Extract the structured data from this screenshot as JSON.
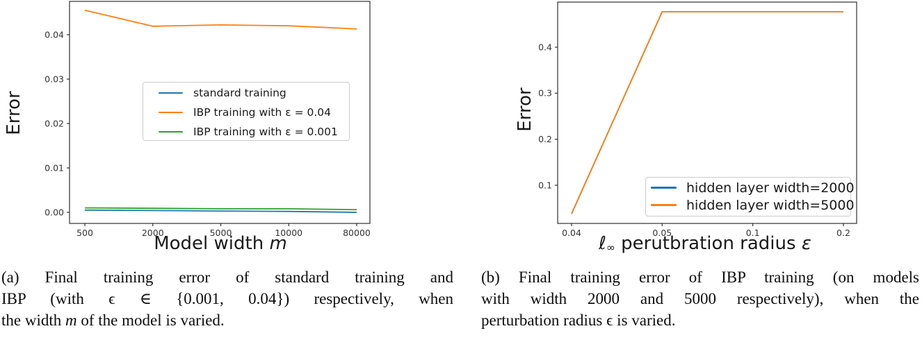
{
  "chart_data": [
    {
      "type": "line",
      "title": "",
      "ylabel": "Error",
      "xlabel_segments": [
        {
          "t": "Model width "
        },
        {
          "t": "m",
          "i": true
        }
      ],
      "x_tick_labels": [
        "500",
        "2000",
        "5000",
        "10000",
        "80000"
      ],
      "y_ticks": [
        0.0,
        0.01,
        0.02,
        0.03,
        0.04
      ],
      "y_tick_labels": [
        "0.00",
        "0.01",
        "0.02",
        "0.03",
        "0.04"
      ],
      "ylim": [
        -0.0025,
        0.0475
      ],
      "grid": false,
      "legend_position": "center",
      "series": [
        {
          "name": "standard training",
          "color": "#1f77b4",
          "values": [
            0.0005,
            0.0004,
            0.0003,
            0.0002,
            0.0
          ]
        },
        {
          "name": "IBP training with ε = 0.04",
          "color": "#ff7f0e",
          "values": [
            0.0455,
            0.0419,
            0.0422,
            0.042,
            0.0413
          ]
        },
        {
          "name": "IBP training with ε = 0.001",
          "color": "#2ca02c",
          "values": [
            0.001,
            0.0009,
            0.0008,
            0.0008,
            0.0006
          ]
        }
      ]
    },
    {
      "type": "line",
      "title": "",
      "ylabel": "Error",
      "xlabel_segments": [
        {
          "t": "ℓ"
        },
        {
          "t": "∞",
          "sub": true
        },
        {
          "t": " perutbration radius "
        },
        {
          "t": "ε",
          "i": true
        }
      ],
      "x": [
        0.04,
        0.05,
        0.1,
        0.2
      ],
      "x_tick_labels": [
        "0.04",
        "0.05",
        "0.1",
        "0.2"
      ],
      "y_ticks": [
        0.1,
        0.2,
        0.3,
        0.4
      ],
      "y_tick_labels": [
        "0.1",
        "0.2",
        "0.3",
        "0.4"
      ],
      "ylim": [
        0.017,
        0.498
      ],
      "grid": false,
      "legend_position": "lower right",
      "series": [
        {
          "name": "hidden layer width=2000",
          "color": "#1f77b4",
          "values": [
            0.038,
            0.477,
            0.477,
            0.477
          ]
        },
        {
          "name": "hidden layer width=5000",
          "color": "#ff7f0e",
          "values": [
            0.038,
            0.477,
            0.477,
            0.477
          ]
        }
      ]
    }
  ],
  "captions": {
    "a": {
      "lines": [
        {
          "justify": true,
          "segments": [
            {
              "t": "(a) Final training error of standard training and"
            }
          ]
        },
        {
          "justify": true,
          "segments": [
            {
              "t": "IBP (with ϵ ∈ {0.001, 0.04}) respectively, when"
            }
          ]
        },
        {
          "justify": false,
          "segments": [
            {
              "t": "the width "
            },
            {
              "t": "m",
              "i": true
            },
            {
              "t": " of the model is varied."
            }
          ]
        }
      ]
    },
    "b": {
      "lines": [
        {
          "justify": true,
          "segments": [
            {
              "t": "(b) Final training error of IBP training (on models"
            }
          ]
        },
        {
          "justify": true,
          "segments": [
            {
              "t": "with width 2000 and 5000 respectively), when the"
            }
          ]
        },
        {
          "justify": false,
          "segments": [
            {
              "t": "perturbation radius ϵ is varied."
            }
          ]
        }
      ]
    }
  },
  "style": {
    "spine_color": "#2e2e2e",
    "tick_label_color": "#333333",
    "background": "#ffffff"
  }
}
